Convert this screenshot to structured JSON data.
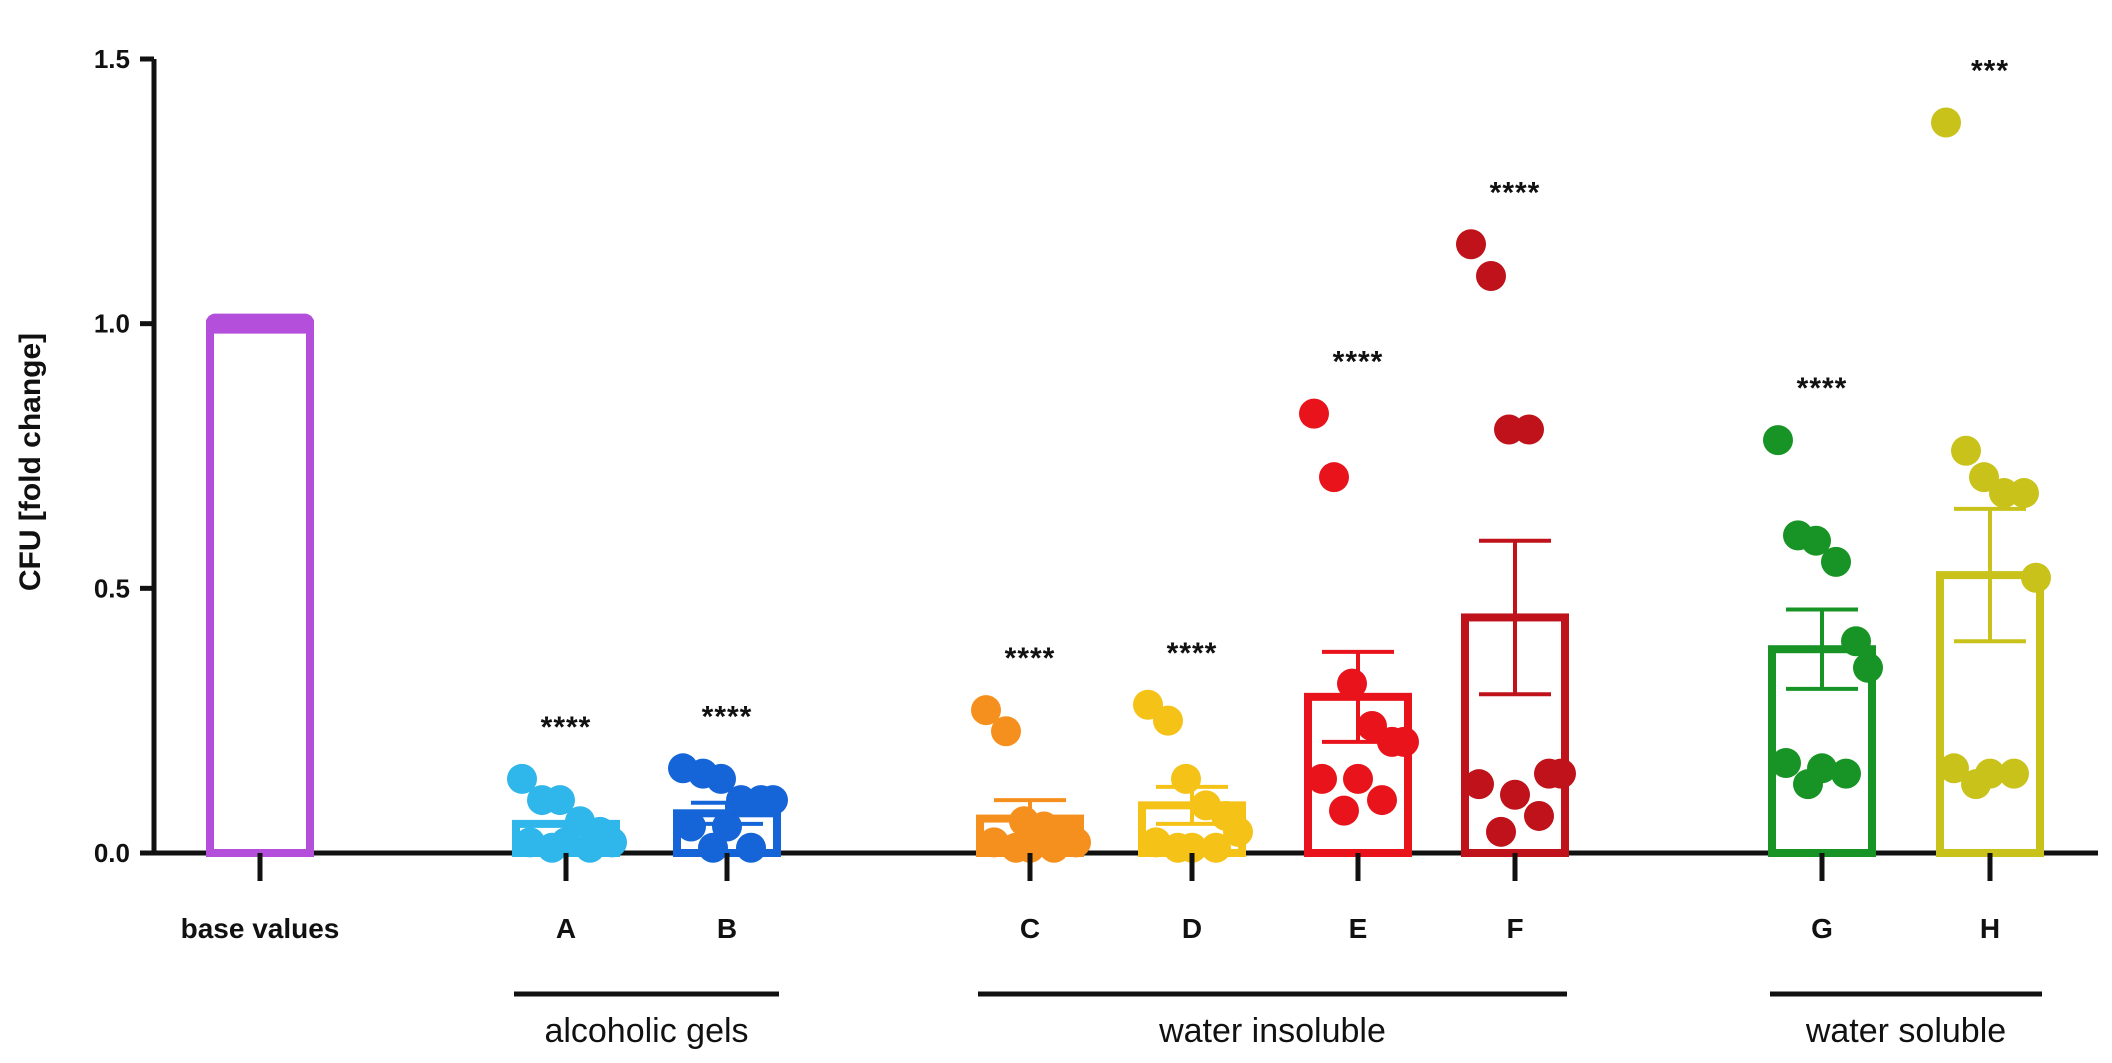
{
  "chart_data": {
    "type": "bar",
    "ylabel": "CFU [fold change]",
    "xlabel": "",
    "ylim": [
      0,
      1.5
    ],
    "yticks": [
      "0.0",
      "0.5",
      "1.0",
      "1.5"
    ],
    "categories": [
      "base values",
      "A",
      "B",
      "C",
      "D",
      "E",
      "F",
      "G",
      "H"
    ],
    "means": [
      1.0,
      0.055,
      0.075,
      0.065,
      0.09,
      0.295,
      0.445,
      0.385,
      0.525
    ],
    "sem": [
      0.0,
      0.0,
      0.02,
      0.035,
      0.035,
      0.085,
      0.145,
      0.075,
      0.125
    ],
    "colors": [
      "#b44fdc",
      "#2fb6ea",
      "#1565d8",
      "#f5901e",
      "#f5c218",
      "#e8131b",
      "#bf121a",
      "#189426",
      "#c9c21b"
    ],
    "significance": [
      "",
      "****",
      "****",
      "****",
      "****",
      "****",
      "****",
      "****",
      "***"
    ],
    "points": [
      [],
      [
        0.14,
        0.1,
        0.1,
        0.06,
        0.04,
        0.02,
        0.02,
        0.02,
        0.01,
        0.01
      ],
      [
        0.16,
        0.15,
        0.14,
        0.1,
        0.1,
        0.1,
        0.05,
        0.05,
        0.01,
        0.01
      ],
      [
        0.27,
        0.23,
        0.06,
        0.05,
        0.04,
        0.02,
        0.02,
        0.01,
        0.01,
        0.01
      ],
      [
        0.28,
        0.25,
        0.14,
        0.09,
        0.07,
        0.04,
        0.02,
        0.01,
        0.01,
        0.01
      ],
      [
        0.83,
        0.71,
        0.32,
        0.24,
        0.21,
        0.21,
        0.14,
        0.14,
        0.1,
        0.08
      ],
      [
        1.15,
        1.09,
        0.8,
        0.8,
        0.15,
        0.15,
        0.13,
        0.11,
        0.07,
        0.04
      ],
      [
        0.78,
        0.6,
        0.59,
        0.55,
        0.4,
        0.35,
        0.17,
        0.16,
        0.15,
        0.13
      ],
      [
        1.38,
        0.76,
        0.71,
        0.68,
        0.68,
        0.52,
        0.16,
        0.15,
        0.15,
        0.13
      ]
    ],
    "groups": [
      {
        "label": "alcoholic gels",
        "from": "A",
        "to": "B"
      },
      {
        "label": "water insoluble",
        "from": "C",
        "to": "F"
      },
      {
        "label": "water soluble",
        "from": "G",
        "to": "H"
      }
    ]
  }
}
